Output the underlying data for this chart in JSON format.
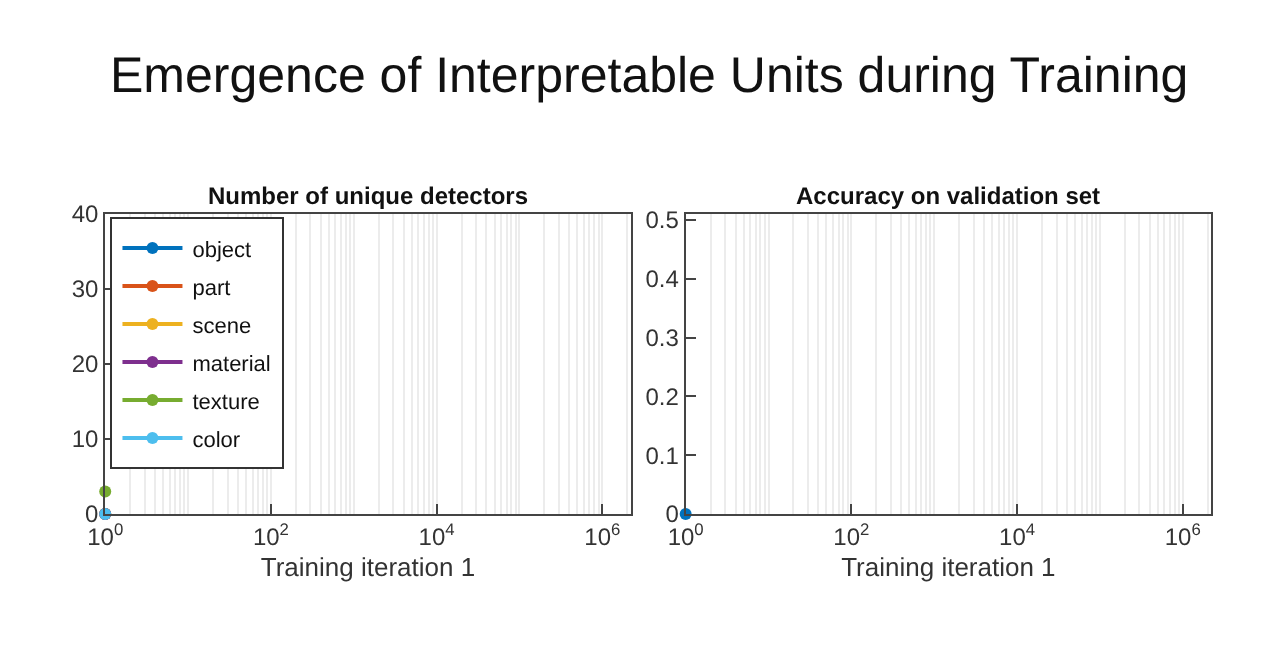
{
  "chart_data": [
    {
      "type": "line",
      "title": "Number of unique detectors",
      "annotations": [
        "Emergence of Interpretable Units during Training"
      ],
      "xlabel": "Training iteration 1",
      "x": [
        1
      ],
      "series": [
        {
          "name": "object",
          "color": "#0072bd",
          "values": [
            0
          ]
        },
        {
          "name": "part",
          "color": "#d95319",
          "values": [
            0
          ]
        },
        {
          "name": "scene",
          "color": "#edb120",
          "values": [
            0
          ]
        },
        {
          "name": "material",
          "color": "#7e2f8e",
          "values": [
            0
          ]
        },
        {
          "name": "texture",
          "color": "#77ac30",
          "values": [
            3
          ]
        },
        {
          "name": "color",
          "color": "#4dbeee",
          "values": [
            0
          ]
        }
      ],
      "log": "x",
      "xlim": [
        1,
        2200000
      ],
      "xticks": [
        {
          "value": 1,
          "label": "10$^{0}$"
        },
        {
          "value": 100,
          "label": "10$^{2}$"
        },
        {
          "value": 10000,
          "label": "10$^{4}$"
        },
        {
          "value": 1000000,
          "label": "10$^{6}$"
        }
      ],
      "ylim": [
        0,
        40
      ],
      "yticks": [
        0,
        10,
        20,
        30,
        40
      ],
      "grid": "x",
      "legend": "top left",
      "marker": "circle"
    },
    {
      "type": "line",
      "title": "Accuracy on validation set",
      "xlabel": "Training iteration 1",
      "x": [
        1
      ],
      "series": [
        {
          "color": "#0072bd",
          "values": [
            0
          ]
        }
      ],
      "log": "x",
      "xlim": [
        1,
        2200000
      ],
      "xticks": [
        {
          "value": 1,
          "label": "10$^{0}$"
        },
        {
          "value": 100,
          "label": "10$^{2}$"
        },
        {
          "value": 10000,
          "label": "10$^{4}$"
        },
        {
          "value": 1000000,
          "label": "10$^{6}$"
        }
      ],
      "ylim": [
        0,
        0.51
      ],
      "yticks": [
        0,
        0.1,
        0.2,
        0.3,
        0.4,
        0.5
      ],
      "grid": "x",
      "legend": false,
      "marker": "circle"
    }
  ]
}
